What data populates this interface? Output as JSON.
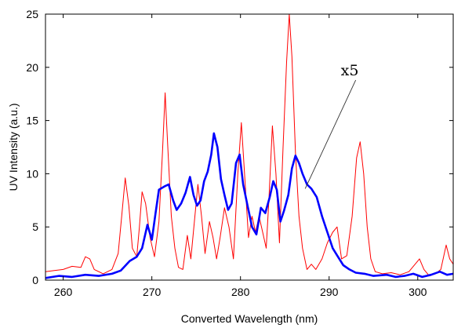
{
  "chart_data": {
    "type": "line",
    "xlabel": "Converted Wavelength (nm)",
    "ylabel": "UV Intensity (a.u.)",
    "xlim": [
      258,
      304
    ],
    "ylim": [
      0,
      25
    ],
    "xticks": [
      260,
      270,
      280,
      290,
      300
    ],
    "yticks": [
      0,
      5,
      10,
      15,
      20,
      25
    ],
    "grid": false,
    "annotation": {
      "text": "x5",
      "arrow_to": [
        287.3,
        8.6
      ],
      "anchor": [
        293.0,
        18.8
      ]
    },
    "series": [
      {
        "color": "#ff0000",
        "width": 1,
        "points": [
          [
            258.0,
            0.8
          ],
          [
            259.0,
            0.9
          ],
          [
            260.0,
            1.0
          ],
          [
            261.0,
            1.3
          ],
          [
            262.0,
            1.2
          ],
          [
            262.5,
            2.2
          ],
          [
            263.0,
            2.0
          ],
          [
            263.5,
            1.0
          ],
          [
            264.5,
            0.6
          ],
          [
            265.5,
            1.0
          ],
          [
            266.2,
            2.5
          ],
          [
            266.6,
            6.0
          ],
          [
            267.0,
            9.6
          ],
          [
            267.4,
            7.0
          ],
          [
            267.8,
            3.0
          ],
          [
            268.3,
            2.2
          ],
          [
            268.6,
            5.0
          ],
          [
            268.9,
            8.3
          ],
          [
            269.3,
            7.2
          ],
          [
            269.8,
            4.0
          ],
          [
            270.3,
            2.2
          ],
          [
            270.8,
            5.5
          ],
          [
            271.2,
            12.0
          ],
          [
            271.5,
            17.6
          ],
          [
            271.8,
            12.5
          ],
          [
            272.2,
            6.0
          ],
          [
            272.6,
            3.0
          ],
          [
            273.0,
            1.2
          ],
          [
            273.5,
            1.0
          ],
          [
            274.0,
            4.2
          ],
          [
            274.4,
            2.0
          ],
          [
            274.8,
            5.5
          ],
          [
            275.2,
            9.0
          ],
          [
            275.6,
            6.0
          ],
          [
            276.0,
            2.5
          ],
          [
            276.5,
            5.5
          ],
          [
            276.9,
            4.0
          ],
          [
            277.3,
            2.0
          ],
          [
            277.7,
            4.0
          ],
          [
            278.2,
            6.8
          ],
          [
            278.7,
            5.0
          ],
          [
            279.2,
            2.0
          ],
          [
            279.7,
            10.0
          ],
          [
            280.1,
            14.8
          ],
          [
            280.5,
            9.5
          ],
          [
            280.9,
            4.0
          ],
          [
            281.3,
            6.0
          ],
          [
            281.7,
            4.5
          ],
          [
            282.1,
            6.0
          ],
          [
            282.5,
            4.5
          ],
          [
            282.9,
            3.0
          ],
          [
            283.2,
            7.5
          ],
          [
            283.6,
            14.5
          ],
          [
            284.0,
            10.0
          ],
          [
            284.4,
            3.5
          ],
          [
            284.8,
            12.5
          ],
          [
            285.2,
            20.5
          ],
          [
            285.5,
            25.0
          ],
          [
            285.8,
            21.0
          ],
          [
            286.2,
            12.0
          ],
          [
            286.6,
            6.0
          ],
          [
            287.0,
            3.0
          ],
          [
            287.5,
            1.0
          ],
          [
            288.0,
            1.5
          ],
          [
            288.5,
            1.0
          ],
          [
            289.2,
            2.0
          ],
          [
            289.8,
            3.5
          ],
          [
            290.4,
            4.5
          ],
          [
            290.9,
            5.0
          ],
          [
            291.4,
            2.0
          ],
          [
            292.0,
            2.3
          ],
          [
            292.6,
            6.0
          ],
          [
            293.1,
            11.5
          ],
          [
            293.5,
            13.0
          ],
          [
            293.9,
            10.0
          ],
          [
            294.3,
            5.0
          ],
          [
            294.7,
            2.0
          ],
          [
            295.2,
            0.8
          ],
          [
            296.0,
            0.6
          ],
          [
            297.0,
            0.7
          ],
          [
            298.0,
            0.5
          ],
          [
            299.0,
            0.8
          ],
          [
            299.7,
            1.5
          ],
          [
            300.2,
            2.0
          ],
          [
            300.7,
            1.0
          ],
          [
            301.3,
            0.4
          ],
          [
            302.0,
            0.6
          ],
          [
            302.6,
            1.0
          ],
          [
            303.2,
            3.3
          ],
          [
            303.6,
            2.0
          ],
          [
            304.0,
            1.5
          ]
        ]
      },
      {
        "color": "#0000ff",
        "width": 2.6,
        "points": [
          [
            258.0,
            0.2
          ],
          [
            259.5,
            0.4
          ],
          [
            261.0,
            0.3
          ],
          [
            262.5,
            0.5
          ],
          [
            264.0,
            0.4
          ],
          [
            265.5,
            0.6
          ],
          [
            266.5,
            0.9
          ],
          [
            267.5,
            1.8
          ],
          [
            268.3,
            2.2
          ],
          [
            268.9,
            3.0
          ],
          [
            269.5,
            5.2
          ],
          [
            270.0,
            3.8
          ],
          [
            270.4,
            6.2
          ],
          [
            270.8,
            8.5
          ],
          [
            271.4,
            8.8
          ],
          [
            271.9,
            9.0
          ],
          [
            272.4,
            7.5
          ],
          [
            272.8,
            6.6
          ],
          [
            273.3,
            7.2
          ],
          [
            273.8,
            8.2
          ],
          [
            274.3,
            9.7
          ],
          [
            274.7,
            8.0
          ],
          [
            275.1,
            7.0
          ],
          [
            275.5,
            7.5
          ],
          [
            275.9,
            9.3
          ],
          [
            276.3,
            10.2
          ],
          [
            276.7,
            11.8
          ],
          [
            277.0,
            13.8
          ],
          [
            277.4,
            12.5
          ],
          [
            277.8,
            9.5
          ],
          [
            278.2,
            8.0
          ],
          [
            278.6,
            6.6
          ],
          [
            279.0,
            7.2
          ],
          [
            279.5,
            11.0
          ],
          [
            279.9,
            11.8
          ],
          [
            280.3,
            9.0
          ],
          [
            280.8,
            7.0
          ],
          [
            281.3,
            5.0
          ],
          [
            281.8,
            4.3
          ],
          [
            282.3,
            6.8
          ],
          [
            282.8,
            6.3
          ],
          [
            283.3,
            7.8
          ],
          [
            283.7,
            9.3
          ],
          [
            284.1,
            8.5
          ],
          [
            284.5,
            5.5
          ],
          [
            284.9,
            6.5
          ],
          [
            285.4,
            8.0
          ],
          [
            285.8,
            10.5
          ],
          [
            286.2,
            11.7
          ],
          [
            286.6,
            11.0
          ],
          [
            287.0,
            10.0
          ],
          [
            287.5,
            9.0
          ],
          [
            288.0,
            8.6
          ],
          [
            288.6,
            7.8
          ],
          [
            289.2,
            6.0
          ],
          [
            289.8,
            4.5
          ],
          [
            290.4,
            3.0
          ],
          [
            291.0,
            2.2
          ],
          [
            291.6,
            1.4
          ],
          [
            292.3,
            1.0
          ],
          [
            293.0,
            0.7
          ],
          [
            294.0,
            0.6
          ],
          [
            295.0,
            0.4
          ],
          [
            296.5,
            0.5
          ],
          [
            297.5,
            0.3
          ],
          [
            298.5,
            0.4
          ],
          [
            299.5,
            0.6
          ],
          [
            300.5,
            0.3
          ],
          [
            301.5,
            0.5
          ],
          [
            302.5,
            0.8
          ],
          [
            303.3,
            0.5
          ],
          [
            304.0,
            0.6
          ]
        ]
      }
    ]
  }
}
